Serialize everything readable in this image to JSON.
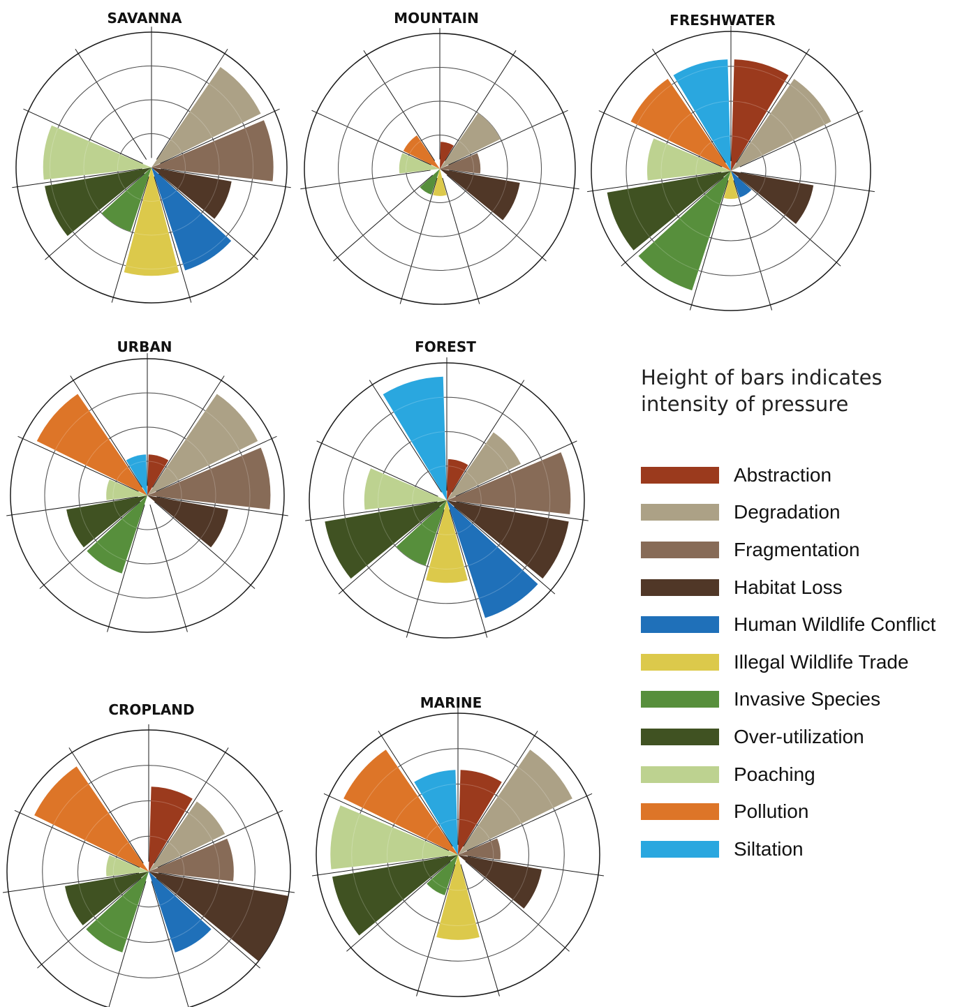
{
  "chart_data": {
    "type": "polar-bar",
    "categories": [
      "Abstraction",
      "Degradation",
      "Fragmentation",
      "Habitat Loss",
      "Human Wildlife Conflict",
      "Illegal Wildlife Trade",
      "Invasive Species",
      "Over-utilization",
      "Poaching",
      "Pollution",
      "Siltation"
    ],
    "colors": [
      "#9b3a1d",
      "#aca186",
      "#876b57",
      "#503727",
      "#1f70b9",
      "#dcc94b",
      "#578f3c",
      "#405222",
      "#bdd290",
      "#dd7528",
      "#2aa7df"
    ],
    "max_value": 10,
    "grid_rings": 4,
    "charts": [
      {
        "title": "SAVANNA",
        "values": [
          0,
          9,
          9,
          6,
          8,
          8,
          5,
          8,
          8,
          0,
          0
        ]
      },
      {
        "title": "MOUNTAIN",
        "values": [
          2,
          5,
          3,
          6,
          0,
          2,
          2,
          0,
          3,
          3,
          0
        ]
      },
      {
        "title": "FRESHWATER",
        "values": [
          8,
          8,
          0,
          6,
          2,
          2,
          9,
          9,
          6,
          8,
          8
        ]
      },
      {
        "title": "URBAN",
        "values": [
          3,
          9,
          9,
          6,
          0,
          0,
          6,
          6,
          3,
          9,
          3
        ]
      },
      {
        "title": "FOREST",
        "values": [
          3,
          6,
          9,
          9,
          9,
          6,
          5,
          9,
          6,
          0,
          9
        ]
      },
      {
        "title": "CROPLAND",
        "values": [
          6,
          6,
          6,
          10,
          6,
          0,
          6,
          6,
          3,
          9,
          0
        ]
      },
      {
        "title": "MARINE",
        "values": [
          6,
          9,
          3,
          6,
          0,
          6,
          3,
          9,
          9,
          9,
          6
        ]
      }
    ]
  },
  "legend": {
    "title": "Height of bars indicates intensity of pressure",
    "items": [
      {
        "label": "Abstraction",
        "color": "#9b3a1d"
      },
      {
        "label": "Degradation",
        "color": "#aca186"
      },
      {
        "label": "Fragmentation",
        "color": "#876b57"
      },
      {
        "label": "Habitat Loss",
        "color": "#503727"
      },
      {
        "label": "Human Wildlife Conflict",
        "color": "#1f70b9"
      },
      {
        "label": "Illegal Wildlife Trade",
        "color": "#dcc94b"
      },
      {
        "label": "Invasive Species",
        "color": "#578f3c"
      },
      {
        "label": "Over-utilization",
        "color": "#405222"
      },
      {
        "label": "Poaching",
        "color": "#bdd290"
      },
      {
        "label": "Pollution",
        "color": "#dd7528"
      },
      {
        "label": "Siltation",
        "color": "#2aa7df"
      }
    ]
  }
}
